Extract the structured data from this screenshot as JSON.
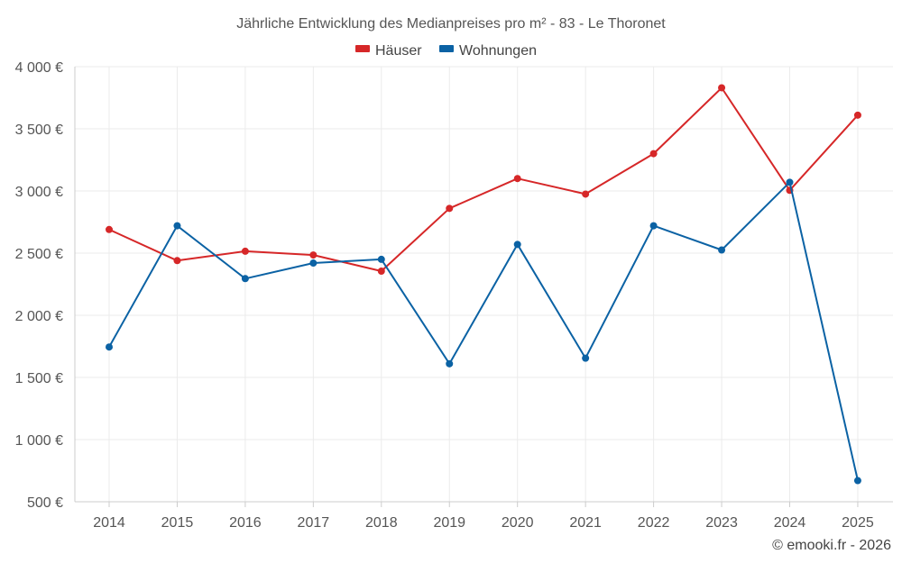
{
  "chart_data": {
    "type": "line",
    "title": "Jährliche Entwicklung des Medianpreises pro m² - 83 - Le Thoronet",
    "xlabel": "",
    "ylabel": "",
    "categories": [
      "2014",
      "2015",
      "2016",
      "2017",
      "2018",
      "2019",
      "2020",
      "2021",
      "2022",
      "2023",
      "2024",
      "2025"
    ],
    "ylim": [
      500,
      4000
    ],
    "yticks": [
      500,
      1000,
      1500,
      2000,
      2500,
      3000,
      3500,
      4000
    ],
    "ytick_labels": [
      "500 €",
      "1 000 €",
      "1 500 €",
      "2 000 €",
      "2 500 €",
      "3 000 €",
      "3 500 €",
      "4 000 €"
    ],
    "grid": true,
    "legend_position": "top-center",
    "series": [
      {
        "name": "Häuser",
        "color": "#d62728",
        "values": [
          2690,
          2440,
          2515,
          2485,
          2355,
          2860,
          3100,
          2975,
          3300,
          3830,
          3005,
          3610
        ]
      },
      {
        "name": "Wohnungen",
        "color": "#0b62a4",
        "values": [
          1745,
          2720,
          2295,
          2420,
          2450,
          1610,
          2570,
          1655,
          2720,
          2525,
          3070,
          670
        ]
      }
    ],
    "credit": "© emooki.fr - 2026"
  }
}
